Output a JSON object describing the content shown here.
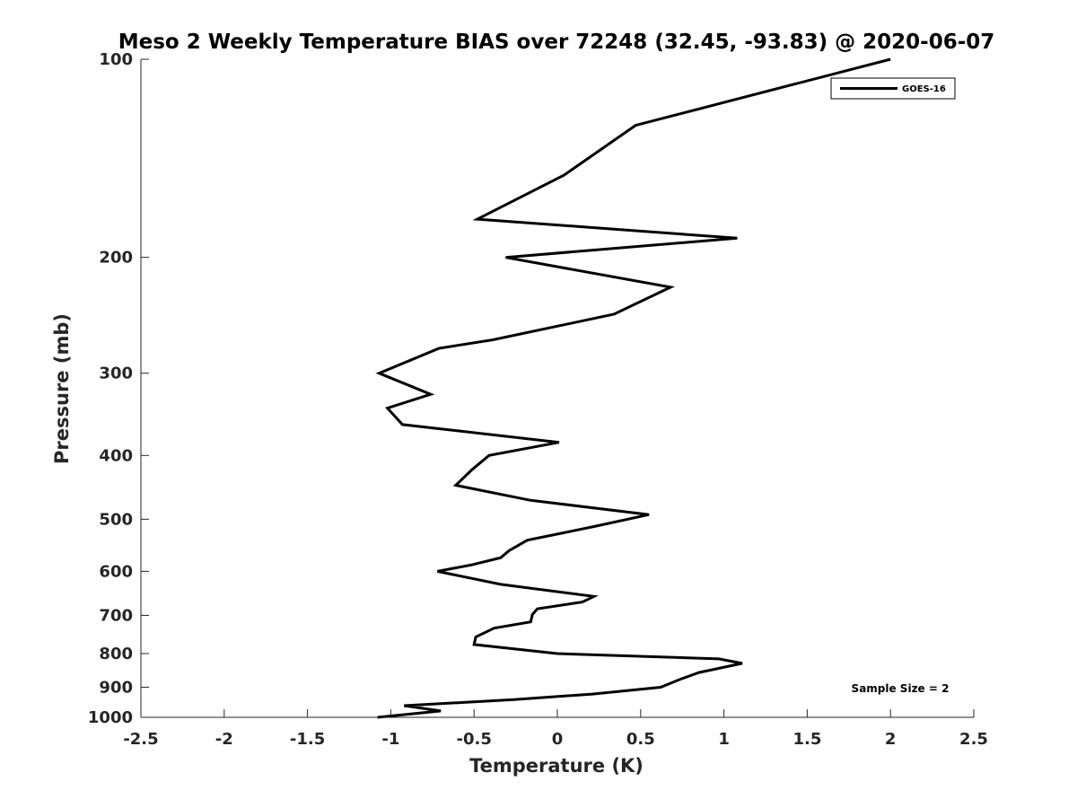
{
  "chart_data": {
    "type": "line",
    "title": "Meso 2 Weekly Temperature BIAS over 72248 (32.45, -93.83) @ 2020-06-07",
    "xlabel": "Temperature (K)",
    "ylabel": "Pressure (mb)",
    "xlim": [
      -2.5,
      2.5
    ],
    "ylim": [
      100,
      1000
    ],
    "yscale": "log",
    "yreversed": true,
    "grid": false,
    "legend_position": "top-right",
    "x_ticks": [
      "-2.5",
      "-2",
      "-1.5",
      "-1",
      "-0.5",
      "0",
      "0.5",
      "1",
      "1.5",
      "2",
      "2.5"
    ],
    "y_ticks": [
      "100",
      "200",
      "300",
      "400",
      "500",
      "600",
      "700",
      "800",
      "900",
      "1000"
    ],
    "series": [
      {
        "name": "GOES-16",
        "color": "#000000",
        "points": [
          {
            "x": 2.0,
            "y": 100
          },
          {
            "x": 0.47,
            "y": 126
          },
          {
            "x": 0.04,
            "y": 150
          },
          {
            "x": -0.48,
            "y": 175
          },
          {
            "x": 1.08,
            "y": 187
          },
          {
            "x": -0.31,
            "y": 200
          },
          {
            "x": 0.68,
            "y": 222
          },
          {
            "x": 0.34,
            "y": 244
          },
          {
            "x": -0.39,
            "y": 267
          },
          {
            "x": -0.71,
            "y": 275
          },
          {
            "x": -1.07,
            "y": 300
          },
          {
            "x": -0.76,
            "y": 323
          },
          {
            "x": -1.02,
            "y": 339
          },
          {
            "x": -0.93,
            "y": 359
          },
          {
            "x": 0.01,
            "y": 382
          },
          {
            "x": -0.41,
            "y": 400
          },
          {
            "x": -0.51,
            "y": 420
          },
          {
            "x": -0.61,
            "y": 444
          },
          {
            "x": -0.16,
            "y": 468
          },
          {
            "x": 0.55,
            "y": 492
          },
          {
            "x": 0.22,
            "y": 513
          },
          {
            "x": -0.18,
            "y": 538
          },
          {
            "x": -0.29,
            "y": 558
          },
          {
            "x": -0.34,
            "y": 572
          },
          {
            "x": -0.52,
            "y": 587
          },
          {
            "x": -0.72,
            "y": 600
          },
          {
            "x": -0.34,
            "y": 628
          },
          {
            "x": 0.22,
            "y": 655
          },
          {
            "x": 0.15,
            "y": 668
          },
          {
            "x": -0.12,
            "y": 684
          },
          {
            "x": -0.15,
            "y": 698
          },
          {
            "x": -0.16,
            "y": 716
          },
          {
            "x": -0.38,
            "y": 732
          },
          {
            "x": -0.49,
            "y": 755
          },
          {
            "x": -0.5,
            "y": 775
          },
          {
            "x": 0.0,
            "y": 800
          },
          {
            "x": 0.97,
            "y": 815
          },
          {
            "x": 1.11,
            "y": 828
          },
          {
            "x": 0.85,
            "y": 855
          },
          {
            "x": 0.74,
            "y": 875
          },
          {
            "x": 0.62,
            "y": 900
          },
          {
            "x": 0.21,
            "y": 922
          },
          {
            "x": -0.26,
            "y": 940
          },
          {
            "x": -0.92,
            "y": 960
          },
          {
            "x": -0.7,
            "y": 978
          },
          {
            "x": -1.08,
            "y": 1000
          }
        ]
      }
    ],
    "annotation": "Sample Size = 2"
  }
}
